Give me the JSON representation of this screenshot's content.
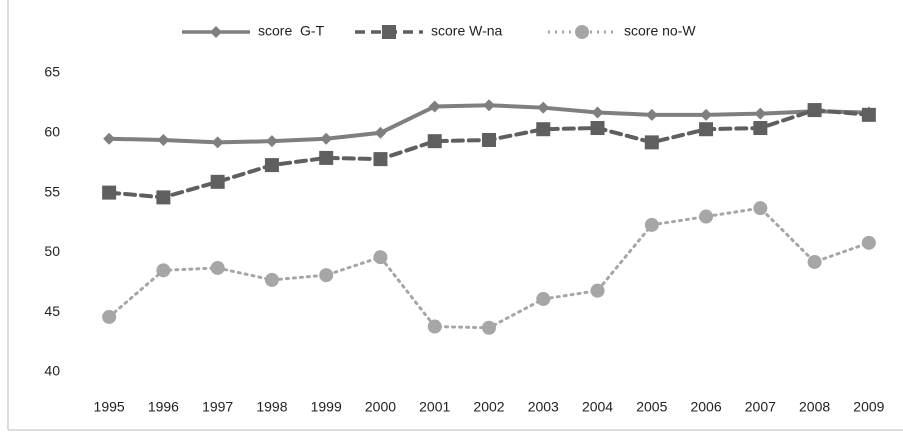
{
  "chart_data": {
    "type": "line",
    "categories": [
      "1995",
      "1996",
      "1997",
      "1998",
      "1999",
      "2000",
      "2001",
      "2002",
      "2003",
      "2004",
      "2005",
      "2006",
      "2007",
      "2008",
      "2009"
    ],
    "series": [
      {
        "name": "score  G-T",
        "color": "#7f7f7f",
        "marker": "diamond",
        "dash": "solid",
        "values": [
          59.5,
          59.4,
          59.2,
          59.3,
          59.5,
          60.0,
          62.2,
          62.3,
          62.1,
          61.7,
          61.5,
          61.5,
          61.6,
          61.8,
          61.7
        ]
      },
      {
        "name": "score W-na",
        "color": "#5f5f5f",
        "marker": "square",
        "dash": "dashed",
        "values": [
          55.0,
          54.6,
          55.9,
          57.3,
          57.9,
          57.8,
          59.3,
          59.4,
          60.3,
          60.4,
          59.2,
          60.3,
          60.4,
          61.9,
          61.5
        ]
      },
      {
        "name": "score no-W",
        "color": "#a6a6a6",
        "marker": "circle",
        "dash": "dotted",
        "values": [
          44.6,
          48.5,
          48.7,
          47.7,
          48.1,
          49.6,
          43.8,
          43.7,
          46.1,
          46.8,
          52.3,
          53.0,
          53.7,
          49.2,
          50.8
        ]
      }
    ],
    "ylim": [
      40,
      65
    ],
    "yticks": [
      40,
      45,
      50,
      55,
      60,
      65
    ],
    "grid": false,
    "legend": "top"
  }
}
